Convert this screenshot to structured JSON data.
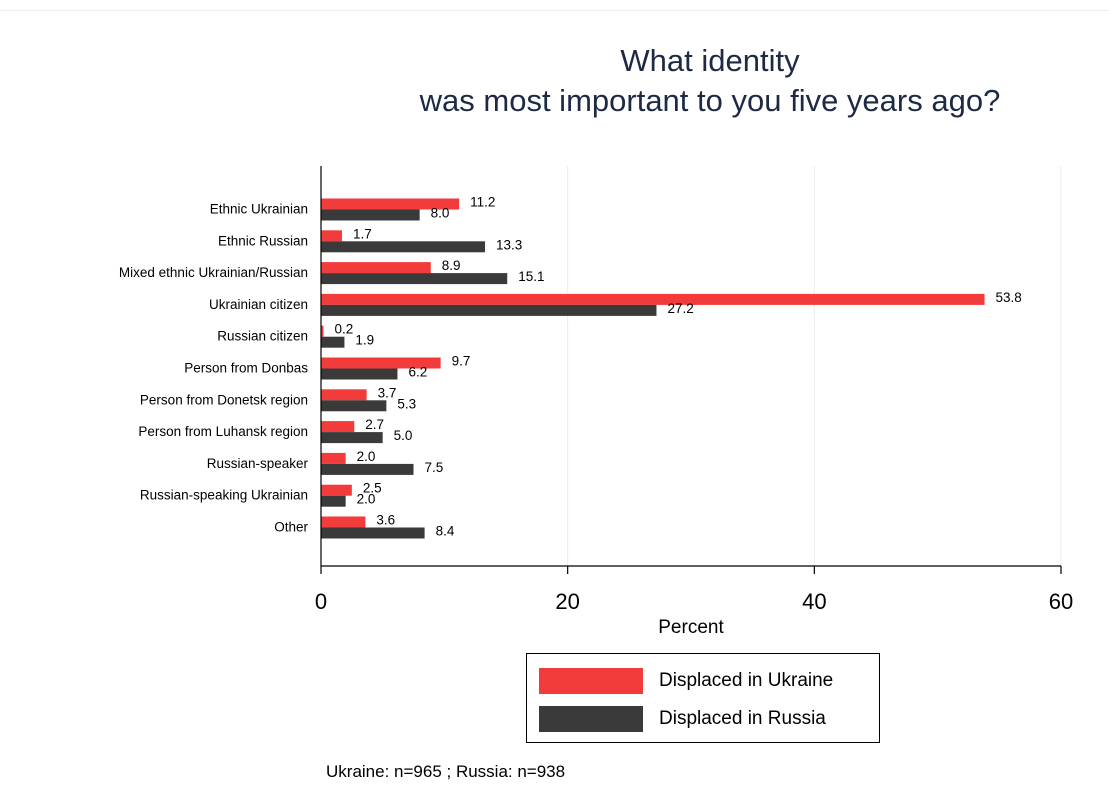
{
  "chart_data": {
    "type": "bar",
    "orientation": "horizontal",
    "title_lines": [
      "What identity",
      "was most important to you five years ago?"
    ],
    "xlabel": "Percent",
    "xlim": [
      0,
      60
    ],
    "xticks": [
      0,
      20,
      40,
      60
    ],
    "grid": true,
    "categories": [
      "Ethnic Ukrainian",
      "Ethnic Russian",
      "Mixed ethnic Ukrainian/Russian",
      "Ukrainian citizen",
      "Russian citizen",
      "Person from Donbas",
      "Person from Donetsk region",
      "Person from Luhansk region",
      "Russian-speaker",
      "Russian-speaking Ukrainian",
      "Other"
    ],
    "series": [
      {
        "name": "Displaced in Ukraine",
        "color": "#f23b3b",
        "values": [
          11.2,
          1.7,
          8.9,
          53.8,
          0.2,
          9.7,
          3.7,
          2.7,
          2.0,
          2.5,
          3.6
        ],
        "labels": [
          "11.2",
          "1.7",
          "8.9",
          "53.8",
          "0.2",
          "9.7",
          "3.7",
          "2.7",
          "2.0",
          "2.5",
          "3.6"
        ]
      },
      {
        "name": "Displaced in Russia",
        "color": "#3a3a3a",
        "values": [
          8.0,
          13.3,
          15.1,
          27.2,
          1.9,
          6.2,
          5.3,
          5.0,
          7.5,
          2.0,
          8.4
        ],
        "labels": [
          "8.0",
          "13.3",
          "15.1",
          "27.2",
          "1.9",
          "6.2",
          "5.3",
          "5.0",
          "7.5",
          "2.0",
          "8.4"
        ]
      }
    ],
    "legend_position": "bottom",
    "note": "Ukraine: n=965 ; Russia: n=938"
  }
}
